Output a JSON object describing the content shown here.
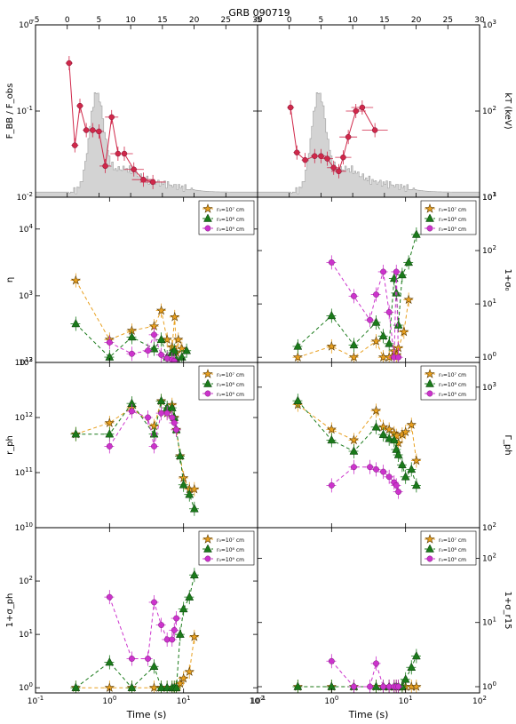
{
  "figure": {
    "title": "GRB 090719",
    "xlabel": "Time (s)",
    "legend": [
      "$r_0$=10$^7$ cm",
      "r₀=10⁸ cm",
      "r₀=10⁹ cm"
    ],
    "legend_text": [
      "r₀=10⁷ cm",
      "r₀=10⁸ cm",
      "r₀=10⁹ cm"
    ],
    "colors": {
      "orange": "#e8a020",
      "green": "#1a7a1a",
      "magenta": "#cc33cc",
      "crimson": "#d0284a",
      "hist_fill": "#d3d3d3",
      "hist_edge": "#a0a0a0"
    }
  },
  "chart_data": [
    {
      "panel": "top-left",
      "type": "line",
      "xscale": "linear",
      "xlim": [
        -5,
        30
      ],
      "xticks": [
        "-5",
        "0",
        "5",
        "10",
        "15",
        "20",
        "25",
        "30"
      ],
      "ylabel": "F_BB / F_obs",
      "yscale": "log",
      "ylim": [
        0.01,
        1
      ],
      "yticks": [
        "10^-2",
        "10^-1",
        "10^0"
      ],
      "lightcurve": {
        "type": "area",
        "desc": "count-rate light curve"
      },
      "series": [
        {
          "name": "F_BB/F_obs",
          "color": "#d0284a",
          "x": [
            0.3,
            1.2,
            2.0,
            3.0,
            4.0,
            5.0,
            6.0,
            7.0,
            8.0,
            9.0,
            10.5,
            12.0,
            13.5
          ],
          "y": [
            0.36,
            0.04,
            0.115,
            0.06,
            0.06,
            0.058,
            0.023,
            0.085,
            0.032,
            0.032,
            0.021,
            0.016,
            0.015
          ]
        }
      ]
    },
    {
      "panel": "top-right",
      "type": "line",
      "xscale": "linear",
      "xlim": [
        -5,
        30
      ],
      "xticks": [
        "-5",
        "0",
        "5",
        "10",
        "15",
        "20",
        "25",
        "30"
      ],
      "ylabel": "kT (keV)",
      "yscale": "log",
      "ylim": [
        10,
        1000
      ],
      "yticks": [
        "10^1",
        "10^2",
        "10^3"
      ],
      "series": [
        {
          "name": "kT",
          "color": "#d0284a",
          "x": [
            0.2,
            1.2,
            2.5,
            4.0,
            5.0,
            6.0,
            7.0,
            7.8,
            8.5,
            9.3,
            10.5,
            11.5,
            13.5
          ],
          "y": [
            110,
            33,
            27,
            30,
            30,
            28,
            22,
            20,
            29,
            50,
            100,
            110,
            60
          ]
        }
      ]
    },
    {
      "panel": "eta",
      "type": "scatter",
      "xscale": "log",
      "xlim": [
        0.1,
        100
      ],
      "ylabel": "η",
      "yscale": "log",
      "ylim": [
        100,
        30000
      ],
      "yticks": [
        "10^2",
        "10^3",
        "10^4"
      ],
      "series": [
        {
          "name": "r₀=10⁷ cm",
          "color": "#e8a020",
          "marker": "star",
          "x": [
            0.35,
            1.0,
            2.0,
            4.0,
            5.0,
            6.0,
            7.0,
            7.6,
            8.0,
            8.5,
            9.5
          ],
          "y": [
            1700,
            220,
            300,
            350,
            600,
            220,
            170,
            480,
            140,
            220,
            160
          ]
        },
        {
          "name": "r₀=10⁸ cm",
          "color": "#1a7a1a",
          "marker": "triangle",
          "x": [
            0.35,
            1.0,
            2.0,
            4.0,
            5.0,
            6.0,
            7.0,
            7.5,
            8.0,
            9.5,
            11.0
          ],
          "y": [
            380,
            120,
            240,
            160,
            220,
            120,
            140,
            150,
            110,
            120,
            150
          ]
        },
        {
          "name": "r₀=10⁹ cm",
          "color": "#cc33cc",
          "marker": "circle",
          "x": [
            1.0,
            2.0,
            3.3,
            4.0,
            5.0,
            6.0,
            7.0,
            7.5
          ],
          "y": [
            200,
            135,
            150,
            260,
            130,
            115,
            110,
            105
          ]
        }
      ]
    },
    {
      "panel": "sigma0",
      "type": "scatter",
      "xscale": "log",
      "xlim": [
        0.1,
        100
      ],
      "ylabel": "1+σ₀",
      "yscale": "log",
      "ylim": [
        0.8,
        1000
      ],
      "yticks": [
        "10^0",
        "10^1",
        "10^2",
        "10^3"
      ],
      "series": [
        {
          "name": "r₀=10⁷ cm",
          "color": "#e8a020",
          "marker": "star",
          "x": [
            0.35,
            1.0,
            2.0,
            4.0,
            5.0,
            6.0,
            7.0,
            7.6,
            8.0,
            9.5,
            11.0
          ],
          "y": [
            1.0,
            1.6,
            1.0,
            2.0,
            1.0,
            1.0,
            1.3,
            1.1,
            1.5,
            3.0,
            12
          ]
        },
        {
          "name": "r₀=10⁸ cm",
          "color": "#1a7a1a",
          "marker": "triangle",
          "x": [
            0.35,
            1.0,
            2.0,
            4.0,
            5.0,
            6.0,
            7.0,
            7.5,
            8.0,
            9.0,
            11.0,
            14.0
          ],
          "y": [
            1.6,
            6.0,
            1.7,
            4.5,
            2.5,
            1.8,
            30,
            16,
            4.0,
            35,
            60,
            200
          ]
        },
        {
          "name": "r₀=10⁹ cm",
          "color": "#cc33cc",
          "marker": "circle",
          "x": [
            1.0,
            2.0,
            3.3,
            4.0,
            5.0,
            6.0,
            7.0,
            7.5,
            8.0
          ],
          "y": [
            60,
            14,
            5,
            15,
            40,
            7,
            1.0,
            40,
            1.0
          ]
        }
      ]
    },
    {
      "panel": "r_ph",
      "type": "scatter",
      "xscale": "log",
      "xlim": [
        0.1,
        100
      ],
      "ylabel": "r_ph",
      "yscale": "log",
      "ylim": [
        10000000000.0,
        10000000000000.0
      ],
      "yticks": [
        "10^10",
        "10^11",
        "10^12",
        "10^13"
      ],
      "series": [
        {
          "name": "r₀=10⁷ cm",
          "color": "#e8a020",
          "marker": "star",
          "x": [
            0.35,
            1.0,
            2.0,
            4.0,
            5.0,
            6.0,
            7.0,
            7.5,
            8.0,
            9.0,
            10.0,
            12.0,
            14.0
          ],
          "y": [
            500000000000.0,
            800000000000.0,
            1500000000000.0,
            700000000000.0,
            2000000000000.0,
            1200000000000.0,
            1700000000000.0,
            1000000000000.0,
            600000000000.0,
            200000000000.0,
            80000000000.0,
            50000000000.0,
            50000000000.0
          ]
        },
        {
          "name": "r₀=10⁸ cm",
          "color": "#1a7a1a",
          "marker": "triangle",
          "x": [
            0.35,
            1.0,
            2.0,
            4.0,
            5.0,
            6.0,
            7.0,
            7.5,
            8.0,
            9.0,
            10.0,
            12.0,
            14.0
          ],
          "y": [
            500000000000.0,
            500000000000.0,
            1800000000000.0,
            500000000000.0,
            2000000000000.0,
            1500000000000.0,
            1500000000000.0,
            1000000000000.0,
            600000000000.0,
            200000000000.0,
            60000000000.0,
            40000000000.0,
            22000000000.0
          ]
        },
        {
          "name": "r₀=10⁹ cm",
          "color": "#cc33cc",
          "marker": "circle",
          "x": [
            1.0,
            2.0,
            3.3,
            4.0,
            5.0,
            6.0,
            7.0,
            7.5,
            8.0
          ],
          "y": [
            300000000000.0,
            1300000000000.0,
            1000000000000.0,
            300000000000.0,
            1200000000000.0,
            1200000000000.0,
            1000000000000.0,
            800000000000.0,
            600000000000.0
          ]
        }
      ]
    },
    {
      "panel": "Gamma_ph",
      "type": "scatter",
      "xscale": "log",
      "xlim": [
        0.1,
        100
      ],
      "ylabel": "Γ_ph",
      "yscale": "log",
      "ylim": [
        100,
        1500
      ],
      "yticks": [
        "10^2",
        "10^3"
      ],
      "series": [
        {
          "name": "r₀=10⁷ cm",
          "color": "#e8a020",
          "marker": "star",
          "x": [
            0.35,
            1.0,
            2.0,
            4.0,
            5.0,
            6.0,
            7.0,
            7.5,
            8.0,
            9.0,
            10.0,
            12.0,
            14.0
          ],
          "y": [
            750,
            500,
            420,
            680,
            520,
            500,
            470,
            450,
            400,
            460,
            480,
            540,
            300
          ]
        },
        {
          "name": "r₀=10⁸ cm",
          "color": "#1a7a1a",
          "marker": "triangle",
          "x": [
            0.35,
            1.0,
            2.0,
            4.0,
            5.0,
            6.0,
            7.0,
            7.5,
            8.0,
            9.0,
            10.0,
            12.0,
            14.0
          ],
          "y": [
            800,
            420,
            350,
            520,
            460,
            430,
            420,
            360,
            330,
            280,
            230,
            260,
            200
          ]
        },
        {
          "name": "r₀=10⁹ cm",
          "color": "#cc33cc",
          "marker": "circle",
          "x": [
            1.0,
            2.0,
            3.3,
            4.0,
            5.0,
            6.0,
            7.0,
            7.5,
            8.0
          ],
          "y": [
            200,
            270,
            270,
            260,
            250,
            230,
            210,
            200,
            180
          ]
        }
      ]
    },
    {
      "panel": "sigma_ph",
      "type": "scatter",
      "xscale": "log",
      "xlim": [
        0.1,
        100
      ],
      "xticks": [
        "10^-1",
        "10^0",
        "10^1",
        "10^2"
      ],
      "ylabel": "1+σ_ph",
      "yscale": "log",
      "ylim": [
        0.8,
        1000
      ],
      "yticks": [
        "10^0",
        "10^1",
        "10^2"
      ],
      "series": [
        {
          "name": "r₀=10⁷ cm",
          "color": "#e8a020",
          "marker": "star",
          "x": [
            0.35,
            1.0,
            2.0,
            4.0,
            5.0,
            6.0,
            7.0,
            7.5,
            8.0,
            9.0,
            10.0,
            12.0,
            14.0
          ],
          "y": [
            1.0,
            1.0,
            1.0,
            1.0,
            1.0,
            1.0,
            1.0,
            1.0,
            1.0,
            1.2,
            1.5,
            2.0,
            9.0
          ]
        },
        {
          "name": "r₀=10⁸ cm",
          "color": "#1a7a1a",
          "marker": "triangle",
          "x": [
            0.35,
            1.0,
            2.0,
            4.0,
            5.0,
            6.0,
            7.0,
            7.5,
            8.0,
            9.0,
            10.0,
            12.0,
            14.0
          ],
          "y": [
            1.0,
            3.0,
            1.0,
            2.5,
            1.0,
            1.0,
            1.0,
            1.0,
            1.0,
            10,
            30,
            50,
            130
          ]
        },
        {
          "name": "r₀=10⁹ cm",
          "color": "#cc33cc",
          "marker": "circle",
          "x": [
            1.0,
            2.0,
            3.3,
            4.0,
            5.0,
            6.0,
            7.0,
            7.5,
            8.0
          ],
          "y": [
            50,
            3.5,
            3.5,
            40,
            15,
            8,
            8,
            12,
            20
          ]
        }
      ]
    },
    {
      "panel": "sigma_r15",
      "type": "scatter",
      "xscale": "log",
      "xlim": [
        0.1,
        100
      ],
      "xticks": [
        "10^-1",
        "10^0",
        "10^1",
        "10^2"
      ],
      "ylabel": "1+σ_r15",
      "yscale": "log",
      "ylim": [
        0.8,
        300
      ],
      "yticks": [
        "10^0",
        "10^1",
        "10^2"
      ],
      "series": [
        {
          "name": "r₀=10⁷ cm",
          "color": "#e8a020",
          "marker": "star",
          "x": [
            0.35,
            1.0,
            2.0,
            4.0,
            5.0,
            6.0,
            7.0,
            7.5,
            8.0,
            9.0,
            10.0,
            12.0,
            14.0
          ],
          "y": [
            1.0,
            1.0,
            1.0,
            1.0,
            1.0,
            1.0,
            1.0,
            1.0,
            1.0,
            1.0,
            1.0,
            1.0,
            1.0
          ]
        },
        {
          "name": "r₀=10⁸ cm",
          "color": "#1a7a1a",
          "marker": "triangle",
          "x": [
            0.35,
            1.0,
            2.0,
            4.0,
            5.0,
            6.0,
            7.0,
            7.5,
            8.0,
            9.0,
            10.0,
            12.0,
            14.0
          ],
          "y": [
            1.0,
            1.0,
            1.0,
            1.0,
            1.0,
            1.0,
            1.0,
            1.0,
            1.0,
            1.0,
            1.3,
            2.0,
            3.0
          ]
        },
        {
          "name": "r₀=10⁹ cm",
          "color": "#cc33cc",
          "marker": "circle",
          "x": [
            1.0,
            2.0,
            3.3,
            4.0,
            5.0,
            6.0,
            7.0,
            7.5,
            8.0
          ],
          "y": [
            2.5,
            1.0,
            1.0,
            2.3,
            1.0,
            1.0,
            1.0,
            1.0,
            1.0
          ]
        }
      ]
    }
  ]
}
